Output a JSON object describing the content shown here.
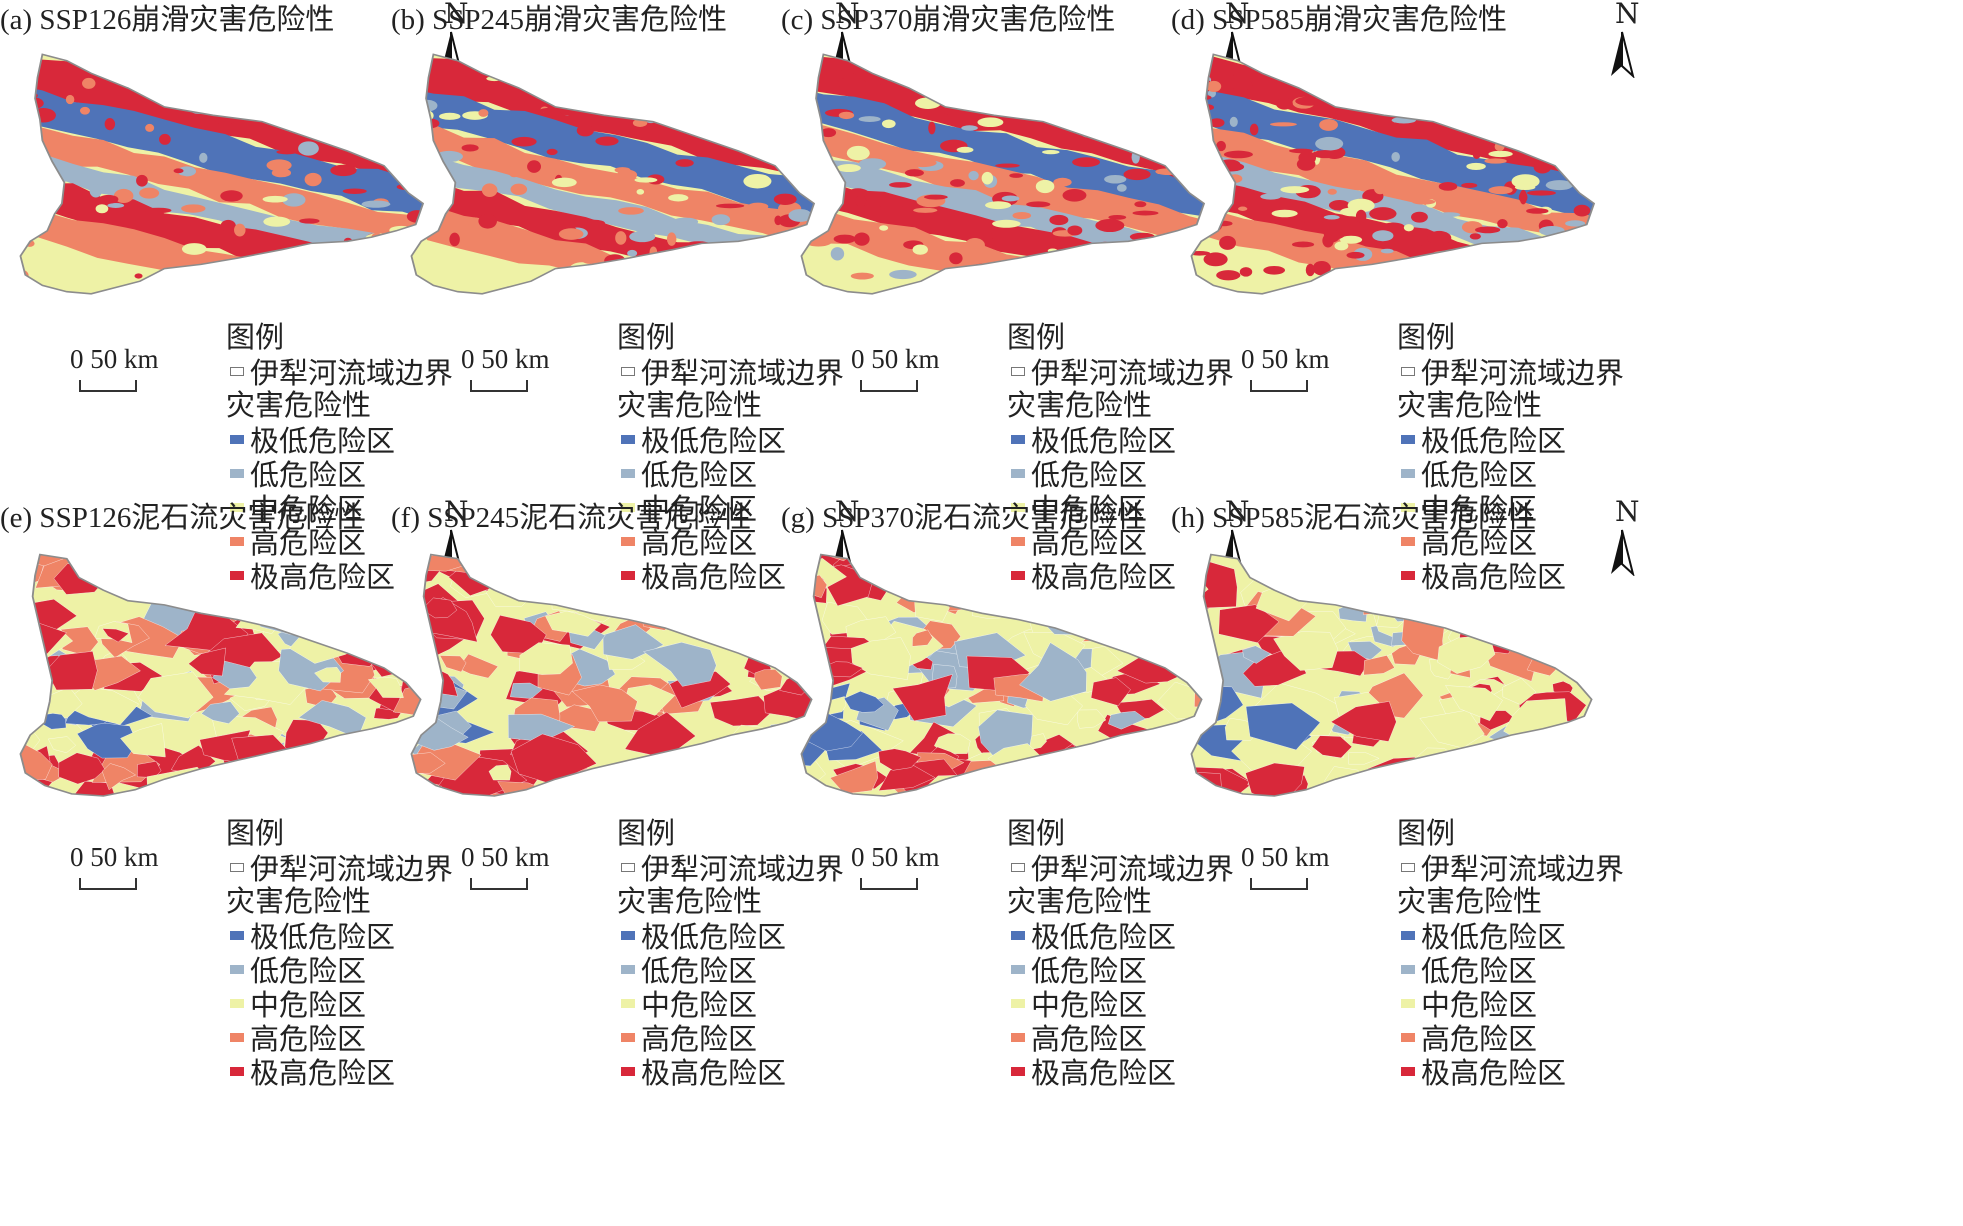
{
  "legend": {
    "title": "图例",
    "boundary": "伊犁河流域边界",
    "subtitle": "灾害危险性",
    "classes": [
      {
        "label": "极低危险区",
        "color": "#4f73b8"
      },
      {
        "label": "低危险区",
        "color": "#9eb4c9"
      },
      {
        "label": "中危险区",
        "color": "#eef2a6"
      },
      {
        "label": "高危险区",
        "color": "#ef8466"
      },
      {
        "label": "极高危险区",
        "color": "#d8283a"
      }
    ]
  },
  "north_label": "N",
  "scale_label": "0 50 km",
  "boundary_color": "#8c8c8c",
  "panels": [
    {
      "title": "(a) SSP126崩滑灾害危险性"
    },
    {
      "title": "(b) SSP245崩滑灾害危险性"
    },
    {
      "title": "(c) SSP370崩滑灾害危险性"
    },
    {
      "title": "(d) SSP585崩滑灾害危险性"
    },
    {
      "title": "(e) SSP126泥石流灾害危险性"
    },
    {
      "title": "(f) SSP245泥石流灾害危险性"
    },
    {
      "title": "(g) SSP370泥石流灾害危险性"
    },
    {
      "title": "(h) SSP585泥石流灾害危险性"
    }
  ]
}
